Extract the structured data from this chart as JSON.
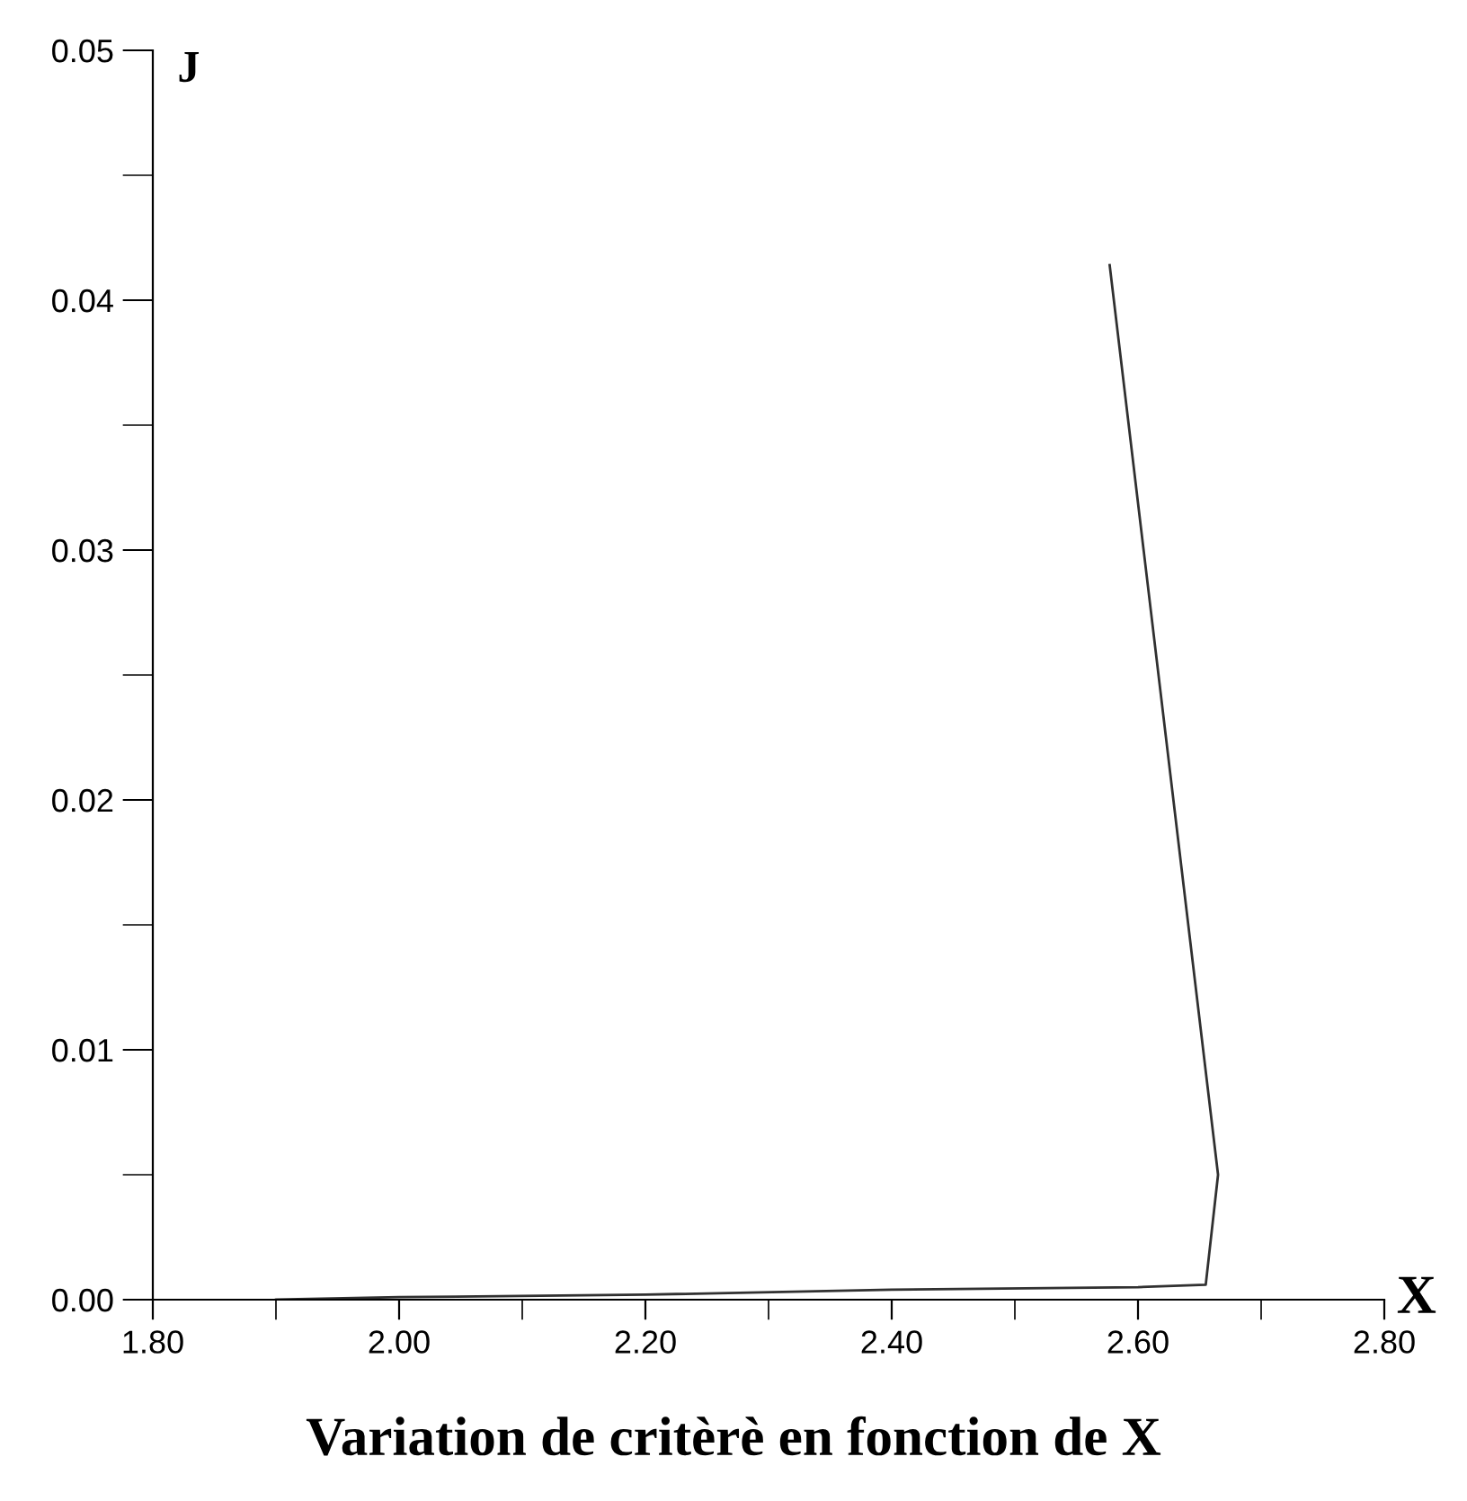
{
  "chart_data": {
    "type": "line",
    "title": "Variation de critèrè en fonction de X",
    "xlabel": "X",
    "ylabel": "J",
    "x": [
      1.9,
      2.0,
      2.2,
      2.4,
      2.6,
      2.655,
      2.665,
      2.577
    ],
    "series": [
      {
        "color": "#303030",
        "values": [
          0.0,
          0.0001,
          0.0002,
          0.0004,
          0.0005,
          0.0006,
          0.005,
          0.0414
        ]
      }
    ],
    "xlim": [
      1.8,
      2.8
    ],
    "xticks": [
      {
        "value": 1.8,
        "label": "1.80"
      },
      {
        "value": 2.0,
        "label": "2.00"
      },
      {
        "value": 2.2,
        "label": "2.20"
      },
      {
        "value": 2.4,
        "label": "2.40"
      },
      {
        "value": 2.6,
        "label": "2.60"
      },
      {
        "value": 2.8,
        "label": "2.80"
      }
    ],
    "ylim": [
      0,
      0.05
    ],
    "yticks": [
      {
        "value": 0,
        "label": "0.00"
      },
      {
        "value": 0.01,
        "label": "0.01"
      },
      {
        "value": 0.02,
        "label": "0.02"
      },
      {
        "value": 0.03,
        "label": "0.03"
      },
      {
        "value": 0.04,
        "label": "0.04"
      },
      {
        "value": 0.05,
        "label": "0.05"
      }
    ],
    "grid": false
  }
}
